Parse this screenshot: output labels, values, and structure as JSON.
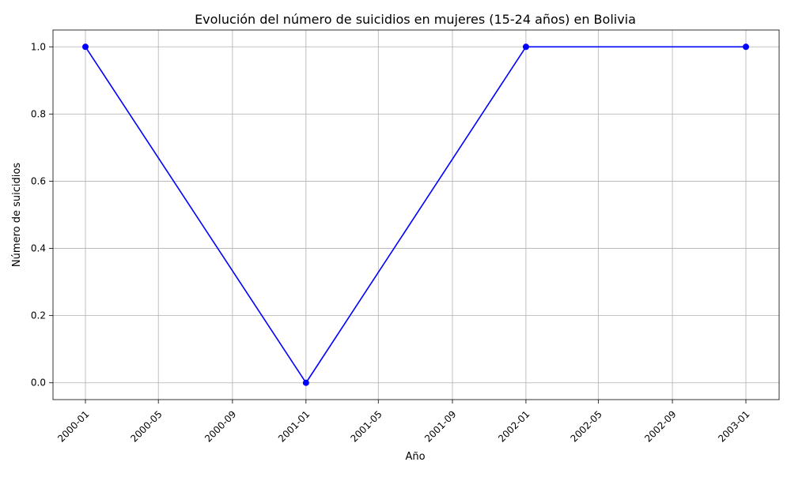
{
  "chart_data": {
    "type": "line",
    "title": "Evolución del número de suicidios en mujeres (15-24 años) en Bolivia",
    "xlabel": "Año",
    "ylabel": "Número de suicidios",
    "x_ticks": [
      "2000-01",
      "2000-05",
      "2000-09",
      "2001-01",
      "2001-05",
      "2001-09",
      "2002-01",
      "2002-05",
      "2002-09",
      "2003-01"
    ],
    "y_ticks": [
      "0.0",
      "0.2",
      "0.4",
      "0.6",
      "0.8",
      "1.0"
    ],
    "ylim": [
      -0.05,
      1.05
    ],
    "grid": true,
    "series": [
      {
        "color": "#0000ff",
        "marker": "circle",
        "x": [
          "2000-01",
          "2001-01",
          "2002-01",
          "2003-01"
        ],
        "values": [
          1,
          0,
          1,
          1
        ]
      }
    ]
  }
}
